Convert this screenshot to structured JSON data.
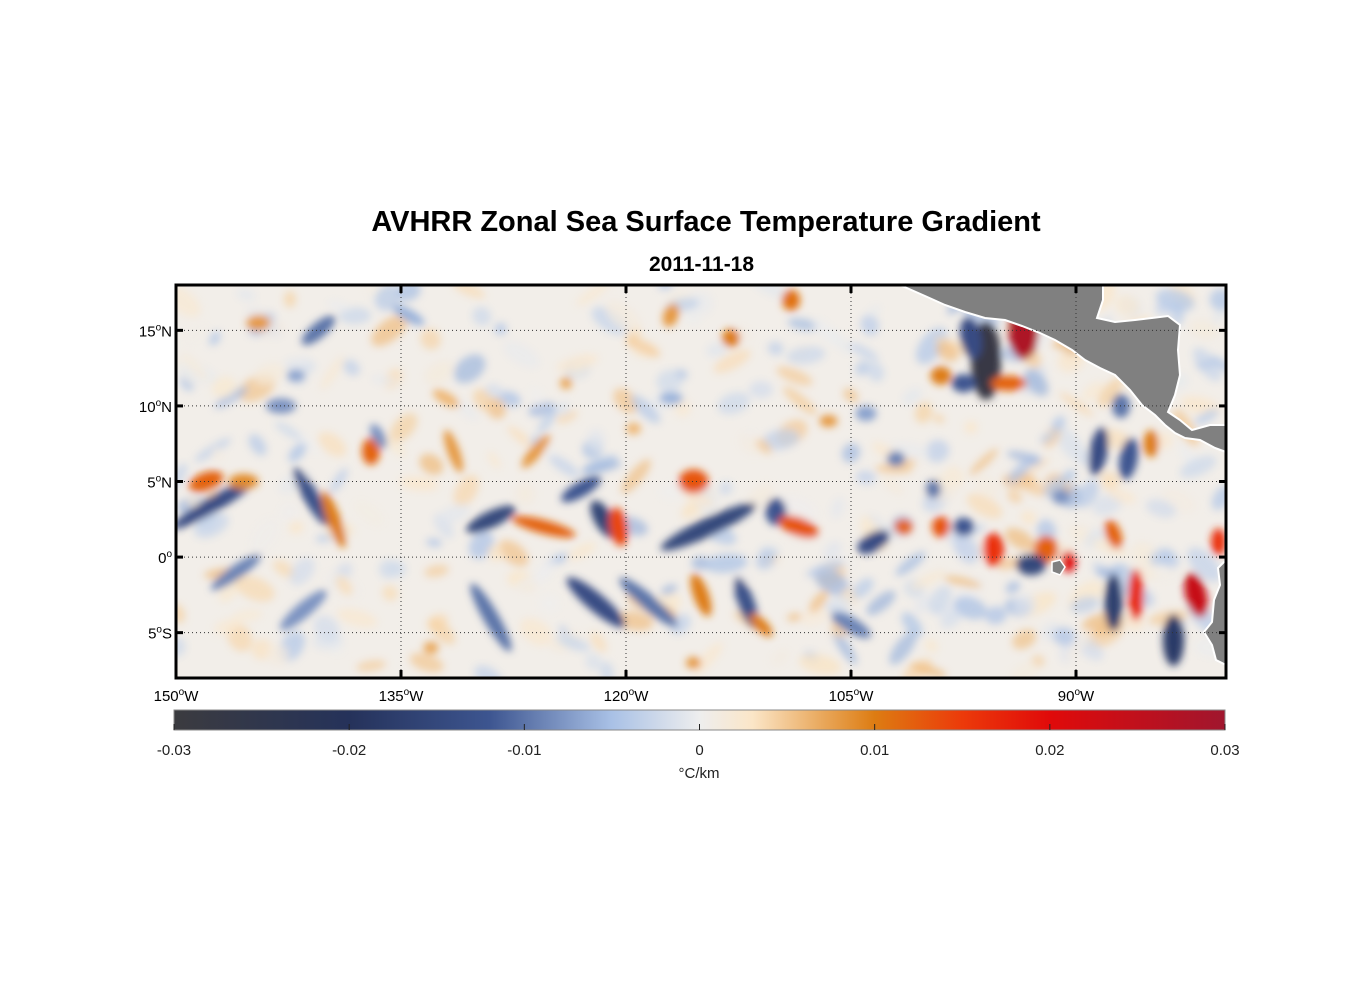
{
  "title": "AVHRR Zonal Sea Surface Temperature Gradient",
  "subtitle": "2011-11-18",
  "map": {
    "lon_range": [
      -150,
      -80
    ],
    "lat_range": [
      -8,
      18
    ],
    "lat_ticks": [
      {
        "value": 15,
        "num": "15",
        "hemi": "N"
      },
      {
        "value": 10,
        "num": "10",
        "hemi": "N"
      },
      {
        "value": 5,
        "num": "5",
        "hemi": "N"
      },
      {
        "value": 0,
        "num": "0",
        "hemi": ""
      },
      {
        "value": -5,
        "num": "5",
        "hemi": "S"
      }
    ],
    "lon_ticks": [
      {
        "value": -150,
        "num": "150",
        "hemi": "W"
      },
      {
        "value": -135,
        "num": "135",
        "hemi": "W"
      },
      {
        "value": -120,
        "num": "120",
        "hemi": "W"
      },
      {
        "value": -105,
        "num": "105",
        "hemi": "W"
      },
      {
        "value": -90,
        "num": "90",
        "hemi": "W"
      }
    ],
    "degree_symbol": "o",
    "grid": "dotted",
    "land_color": "#808080",
    "features": [
      {
        "lon": -147.5,
        "lat": 3.5,
        "v": -0.014,
        "rx": 3.2,
        "ry": 0.5,
        "rot": -30
      },
      {
        "lon": -148.0,
        "lat": 5.0,
        "v": 0.012,
        "rx": 1.2,
        "ry": 0.6,
        "rot": -20
      },
      {
        "lon": -145.5,
        "lat": 5.0,
        "v": 0.009,
        "rx": 1.0,
        "ry": 0.5,
        "rot": 0
      },
      {
        "lon": -141.0,
        "lat": 4.0,
        "v": -0.013,
        "rx": 2.2,
        "ry": 0.5,
        "rot": 60
      },
      {
        "lon": -139.5,
        "lat": 2.5,
        "v": 0.01,
        "rx": 2.0,
        "ry": 0.45,
        "rot": 70
      },
      {
        "lon": -137.0,
        "lat": 7.0,
        "v": 0.012,
        "rx": 0.6,
        "ry": 0.9,
        "rot": 0
      },
      {
        "lon": -140.5,
        "lat": 15.0,
        "v": -0.01,
        "rx": 1.4,
        "ry": 0.5,
        "rot": -40
      },
      {
        "lon": -143.0,
        "lat": 10.0,
        "v": -0.008,
        "rx": 1.0,
        "ry": 0.5,
        "rot": 0
      },
      {
        "lon": -146.0,
        "lat": -1.0,
        "v": -0.009,
        "rx": 2.0,
        "ry": 0.45,
        "rot": -35
      },
      {
        "lon": -141.5,
        "lat": -3.5,
        "v": -0.008,
        "rx": 2.0,
        "ry": 0.5,
        "rot": -40
      },
      {
        "lon": -144.5,
        "lat": 15.5,
        "v": 0.008,
        "rx": 0.8,
        "ry": 0.5,
        "rot": 0
      },
      {
        "lon": -129.0,
        "lat": 2.5,
        "v": -0.015,
        "rx": 1.8,
        "ry": 0.55,
        "rot": -25
      },
      {
        "lon": -125.5,
        "lat": 2.0,
        "v": 0.012,
        "rx": 2.2,
        "ry": 0.45,
        "rot": 15
      },
      {
        "lon": -121.5,
        "lat": 2.5,
        "v": -0.016,
        "rx": 1.4,
        "ry": 0.6,
        "rot": 60
      },
      {
        "lon": -120.5,
        "lat": 2.0,
        "v": 0.014,
        "rx": 1.3,
        "ry": 0.6,
        "rot": 80
      },
      {
        "lon": -123.0,
        "lat": 4.5,
        "v": -0.012,
        "rx": 1.5,
        "ry": 0.5,
        "rot": -30
      },
      {
        "lon": -118.5,
        "lat": -3.0,
        "v": -0.01,
        "rx": 2.5,
        "ry": 0.5,
        "rot": 40
      },
      {
        "lon": -122.0,
        "lat": -3.0,
        "v": -0.014,
        "rx": 2.5,
        "ry": 0.6,
        "rot": 40
      },
      {
        "lon": -129.0,
        "lat": -4.0,
        "v": -0.01,
        "rx": 2.6,
        "ry": 0.5,
        "rot": 60
      },
      {
        "lon": -126.0,
        "lat": 7.0,
        "v": 0.008,
        "rx": 1.4,
        "ry": 0.4,
        "rot": -50
      },
      {
        "lon": -131.5,
        "lat": 7.0,
        "v": 0.008,
        "rx": 1.5,
        "ry": 0.4,
        "rot": 70
      },
      {
        "lon": -114.5,
        "lat": 2.0,
        "v": -0.015,
        "rx": 3.5,
        "ry": 0.6,
        "rot": -25
      },
      {
        "lon": -115.5,
        "lat": 5.0,
        "v": 0.013,
        "rx": 1.0,
        "ry": 0.8,
        "rot": 0
      },
      {
        "lon": -112.0,
        "lat": -3.0,
        "v": -0.013,
        "rx": 1.8,
        "ry": 0.55,
        "rot": 70
      },
      {
        "lon": -115.0,
        "lat": -2.5,
        "v": 0.01,
        "rx": 1.5,
        "ry": 0.5,
        "rot": 70
      },
      {
        "lon": -110.0,
        "lat": 3.0,
        "v": -0.012,
        "rx": 0.7,
        "ry": 0.9,
        "rot": 0
      },
      {
        "lon": -108.5,
        "lat": 2.0,
        "v": 0.013,
        "rx": 1.4,
        "ry": 0.6,
        "rot": 20
      },
      {
        "lon": -111.0,
        "lat": -4.5,
        "v": 0.01,
        "rx": 1.0,
        "ry": 0.4,
        "rot": 45
      },
      {
        "lon": -113.0,
        "lat": 14.5,
        "v": 0.01,
        "rx": 0.6,
        "ry": 0.6,
        "rot": 0
      },
      {
        "lon": -109.0,
        "lat": 17.0,
        "v": 0.011,
        "rx": 0.6,
        "ry": 0.7,
        "rot": 0
      },
      {
        "lon": -117.0,
        "lat": 16.0,
        "v": 0.008,
        "rx": 0.5,
        "ry": 0.8,
        "rot": 20
      },
      {
        "lon": -103.5,
        "lat": 1.0,
        "v": -0.014,
        "rx": 1.2,
        "ry": 0.6,
        "rot": -30
      },
      {
        "lon": -101.5,
        "lat": 2.0,
        "v": 0.012,
        "rx": 0.6,
        "ry": 0.5,
        "rot": 0
      },
      {
        "lon": -96.0,
        "lat": 13.0,
        "v": -0.028,
        "rx": 1.0,
        "ry": 2.6,
        "rot": 0
      },
      {
        "lon": -97.0,
        "lat": 14.5,
        "v": -0.014,
        "rx": 0.7,
        "ry": 1.4,
        "rot": -10
      },
      {
        "lon": -93.5,
        "lat": 15.0,
        "v": 0.028,
        "rx": 1.0,
        "ry": 1.9,
        "rot": 0
      },
      {
        "lon": -94.5,
        "lat": 11.5,
        "v": 0.012,
        "rx": 1.2,
        "ry": 0.5,
        "rot": 0
      },
      {
        "lon": -99.0,
        "lat": 12.0,
        "v": 0.01,
        "rx": 0.7,
        "ry": 0.6,
        "rot": 0
      },
      {
        "lon": -97.5,
        "lat": 11.5,
        "v": -0.012,
        "rx": 0.8,
        "ry": 0.6,
        "rot": 0
      },
      {
        "lon": -95.5,
        "lat": 0.5,
        "v": 0.016,
        "rx": 0.7,
        "ry": 1.1,
        "rot": 0
      },
      {
        "lon": -99.0,
        "lat": 2.0,
        "v": 0.013,
        "rx": 0.6,
        "ry": 0.7,
        "rot": 0
      },
      {
        "lon": -97.5,
        "lat": 2.0,
        "v": -0.012,
        "rx": 0.7,
        "ry": 0.6,
        "rot": 0
      },
      {
        "lon": -92.0,
        "lat": 0.5,
        "v": 0.012,
        "rx": 0.8,
        "ry": 0.9,
        "rot": 0
      },
      {
        "lon": -93.0,
        "lat": -0.5,
        "v": -0.015,
        "rx": 1.0,
        "ry": 0.7,
        "rot": 0
      },
      {
        "lon": -90.5,
        "lat": -0.3,
        "v": 0.02,
        "rx": 0.5,
        "ry": 0.7,
        "rot": 0
      },
      {
        "lon": -87.5,
        "lat": 1.5,
        "v": 0.012,
        "rx": 0.5,
        "ry": 1.0,
        "rot": -20
      },
      {
        "lon": -88.5,
        "lat": 7.0,
        "v": -0.014,
        "rx": 0.6,
        "ry": 1.6,
        "rot": 10
      },
      {
        "lon": -86.5,
        "lat": 6.5,
        "v": -0.012,
        "rx": 0.6,
        "ry": 1.4,
        "rot": 10
      },
      {
        "lon": -85.0,
        "lat": 7.5,
        "v": 0.01,
        "rx": 0.5,
        "ry": 0.9,
        "rot": 0
      },
      {
        "lon": -87.0,
        "lat": 10.0,
        "v": -0.01,
        "rx": 0.6,
        "ry": 0.8,
        "rot": 0
      },
      {
        "lon": -86.0,
        "lat": -2.5,
        "v": 0.017,
        "rx": 0.5,
        "ry": 1.7,
        "rot": 0
      },
      {
        "lon": -87.5,
        "lat": -3.0,
        "v": -0.017,
        "rx": 0.6,
        "ry": 1.9,
        "rot": 0
      },
      {
        "lon": -83.5,
        "lat": -5.5,
        "v": -0.018,
        "rx": 0.7,
        "ry": 1.7,
        "rot": 0
      },
      {
        "lon": -82.0,
        "lat": -2.5,
        "v": 0.024,
        "rx": 0.7,
        "ry": 1.5,
        "rot": -15
      },
      {
        "lon": -80.5,
        "lat": 1.0,
        "v": 0.016,
        "rx": 0.5,
        "ry": 0.9,
        "rot": 0
      },
      {
        "lon": -105.0,
        "lat": -4.5,
        "v": -0.009,
        "rx": 1.5,
        "ry": 0.5,
        "rot": 30
      },
      {
        "lon": -134.5,
        "lat": 16.0,
        "v": -0.006,
        "rx": 1.2,
        "ry": 0.4,
        "rot": 30
      },
      {
        "lon": -132.0,
        "lat": 10.5,
        "v": 0.006,
        "rx": 1.0,
        "ry": 0.4,
        "rot": 30
      },
      {
        "lon": -102.0,
        "lat": 6.5,
        "v": -0.009,
        "rx": 0.6,
        "ry": 0.5,
        "rot": 0
      },
      {
        "lon": -99.5,
        "lat": 4.5,
        "v": -0.01,
        "rx": 0.5,
        "ry": 0.6,
        "rot": 0
      },
      {
        "lon": -91.0,
        "lat": 4.0,
        "v": -0.008,
        "rx": 0.6,
        "ry": 0.5,
        "rot": 0
      },
      {
        "lon": -104.0,
        "lat": 9.5,
        "v": -0.007,
        "rx": 0.7,
        "ry": 0.5,
        "rot": 0
      },
      {
        "lon": -106.5,
        "lat": 9.0,
        "v": 0.008,
        "rx": 0.6,
        "ry": 0.4,
        "rot": 0
      },
      {
        "lon": -142.0,
        "lat": 12.0,
        "v": -0.007,
        "rx": 0.6,
        "ry": 0.4,
        "rot": 0
      },
      {
        "lon": -136.5,
        "lat": 8.0,
        "v": -0.008,
        "rx": 0.9,
        "ry": 0.4,
        "rot": 60
      },
      {
        "lon": -124.0,
        "lat": 11.5,
        "v": 0.007,
        "rx": 0.4,
        "ry": 0.4,
        "rot": 0
      },
      {
        "lon": -117.0,
        "lat": 10.5,
        "v": -0.006,
        "rx": 0.8,
        "ry": 0.4,
        "rot": 0
      },
      {
        "lon": -119.5,
        "lat": 8.5,
        "v": 0.006,
        "rx": 0.5,
        "ry": 0.4,
        "rot": 0
      },
      {
        "lon": -133.0,
        "lat": -6.0,
        "v": 0.007,
        "rx": 0.5,
        "ry": 0.4,
        "rot": 0
      },
      {
        "lon": -115.5,
        "lat": -7.0,
        "v": 0.008,
        "rx": 0.5,
        "ry": 0.4,
        "rot": 0
      }
    ]
  },
  "colorbar": {
    "min": -0.03,
    "max": 0.03,
    "ticks": [
      "-0.03",
      "-0.02",
      "-0.01",
      "0",
      "0.01",
      "0.02",
      "0.03"
    ],
    "label": "°C/km",
    "colormap": [
      {
        "v": -0.03,
        "c": "#3b3b3f"
      },
      {
        "v": -0.02,
        "c": "#25325a"
      },
      {
        "v": -0.012,
        "c": "#3d5590"
      },
      {
        "v": -0.005,
        "c": "#a9c1e6"
      },
      {
        "v": 0.0,
        "c": "#eeeeee"
      },
      {
        "v": 0.003,
        "c": "#fbe6c8"
      },
      {
        "v": 0.007,
        "c": "#e9a85c"
      },
      {
        "v": 0.01,
        "c": "#dd7c12"
      },
      {
        "v": 0.015,
        "c": "#ec3a0a"
      },
      {
        "v": 0.02,
        "c": "#e00a0a"
      },
      {
        "v": 0.03,
        "c": "#a0162e"
      }
    ]
  }
}
